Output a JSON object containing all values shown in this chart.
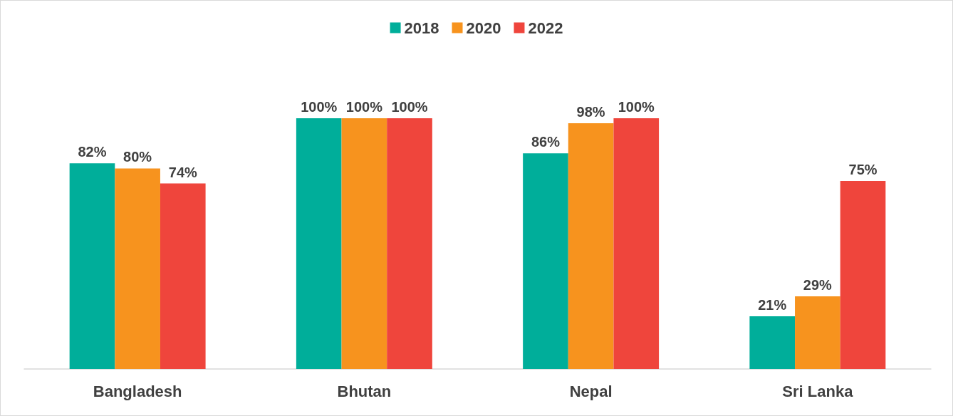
{
  "chart_data": {
    "type": "bar",
    "categories": [
      "Bangladesh",
      "Bhutan",
      "Nepal",
      "Sri Lanka"
    ],
    "series": [
      {
        "name": "2018",
        "color": "#00ae9a",
        "values": [
          82,
          100,
          86,
          21
        ],
        "value_labels": [
          "82%",
          "100%",
          "86%",
          "21%"
        ]
      },
      {
        "name": "2020",
        "color": "#f7931e",
        "values": [
          80,
          100,
          98,
          29
        ],
        "value_labels": [
          "80%",
          "100%",
          "98%",
          "29%"
        ]
      },
      {
        "name": "2022",
        "color": "#ef453c",
        "values": [
          74,
          100,
          100,
          75
        ],
        "value_labels": [
          "74%",
          "100%",
          "100%",
          "75%"
        ]
      }
    ],
    "ylim": [
      0,
      100
    ],
    "legend": "top",
    "tick_labels": "x"
  }
}
